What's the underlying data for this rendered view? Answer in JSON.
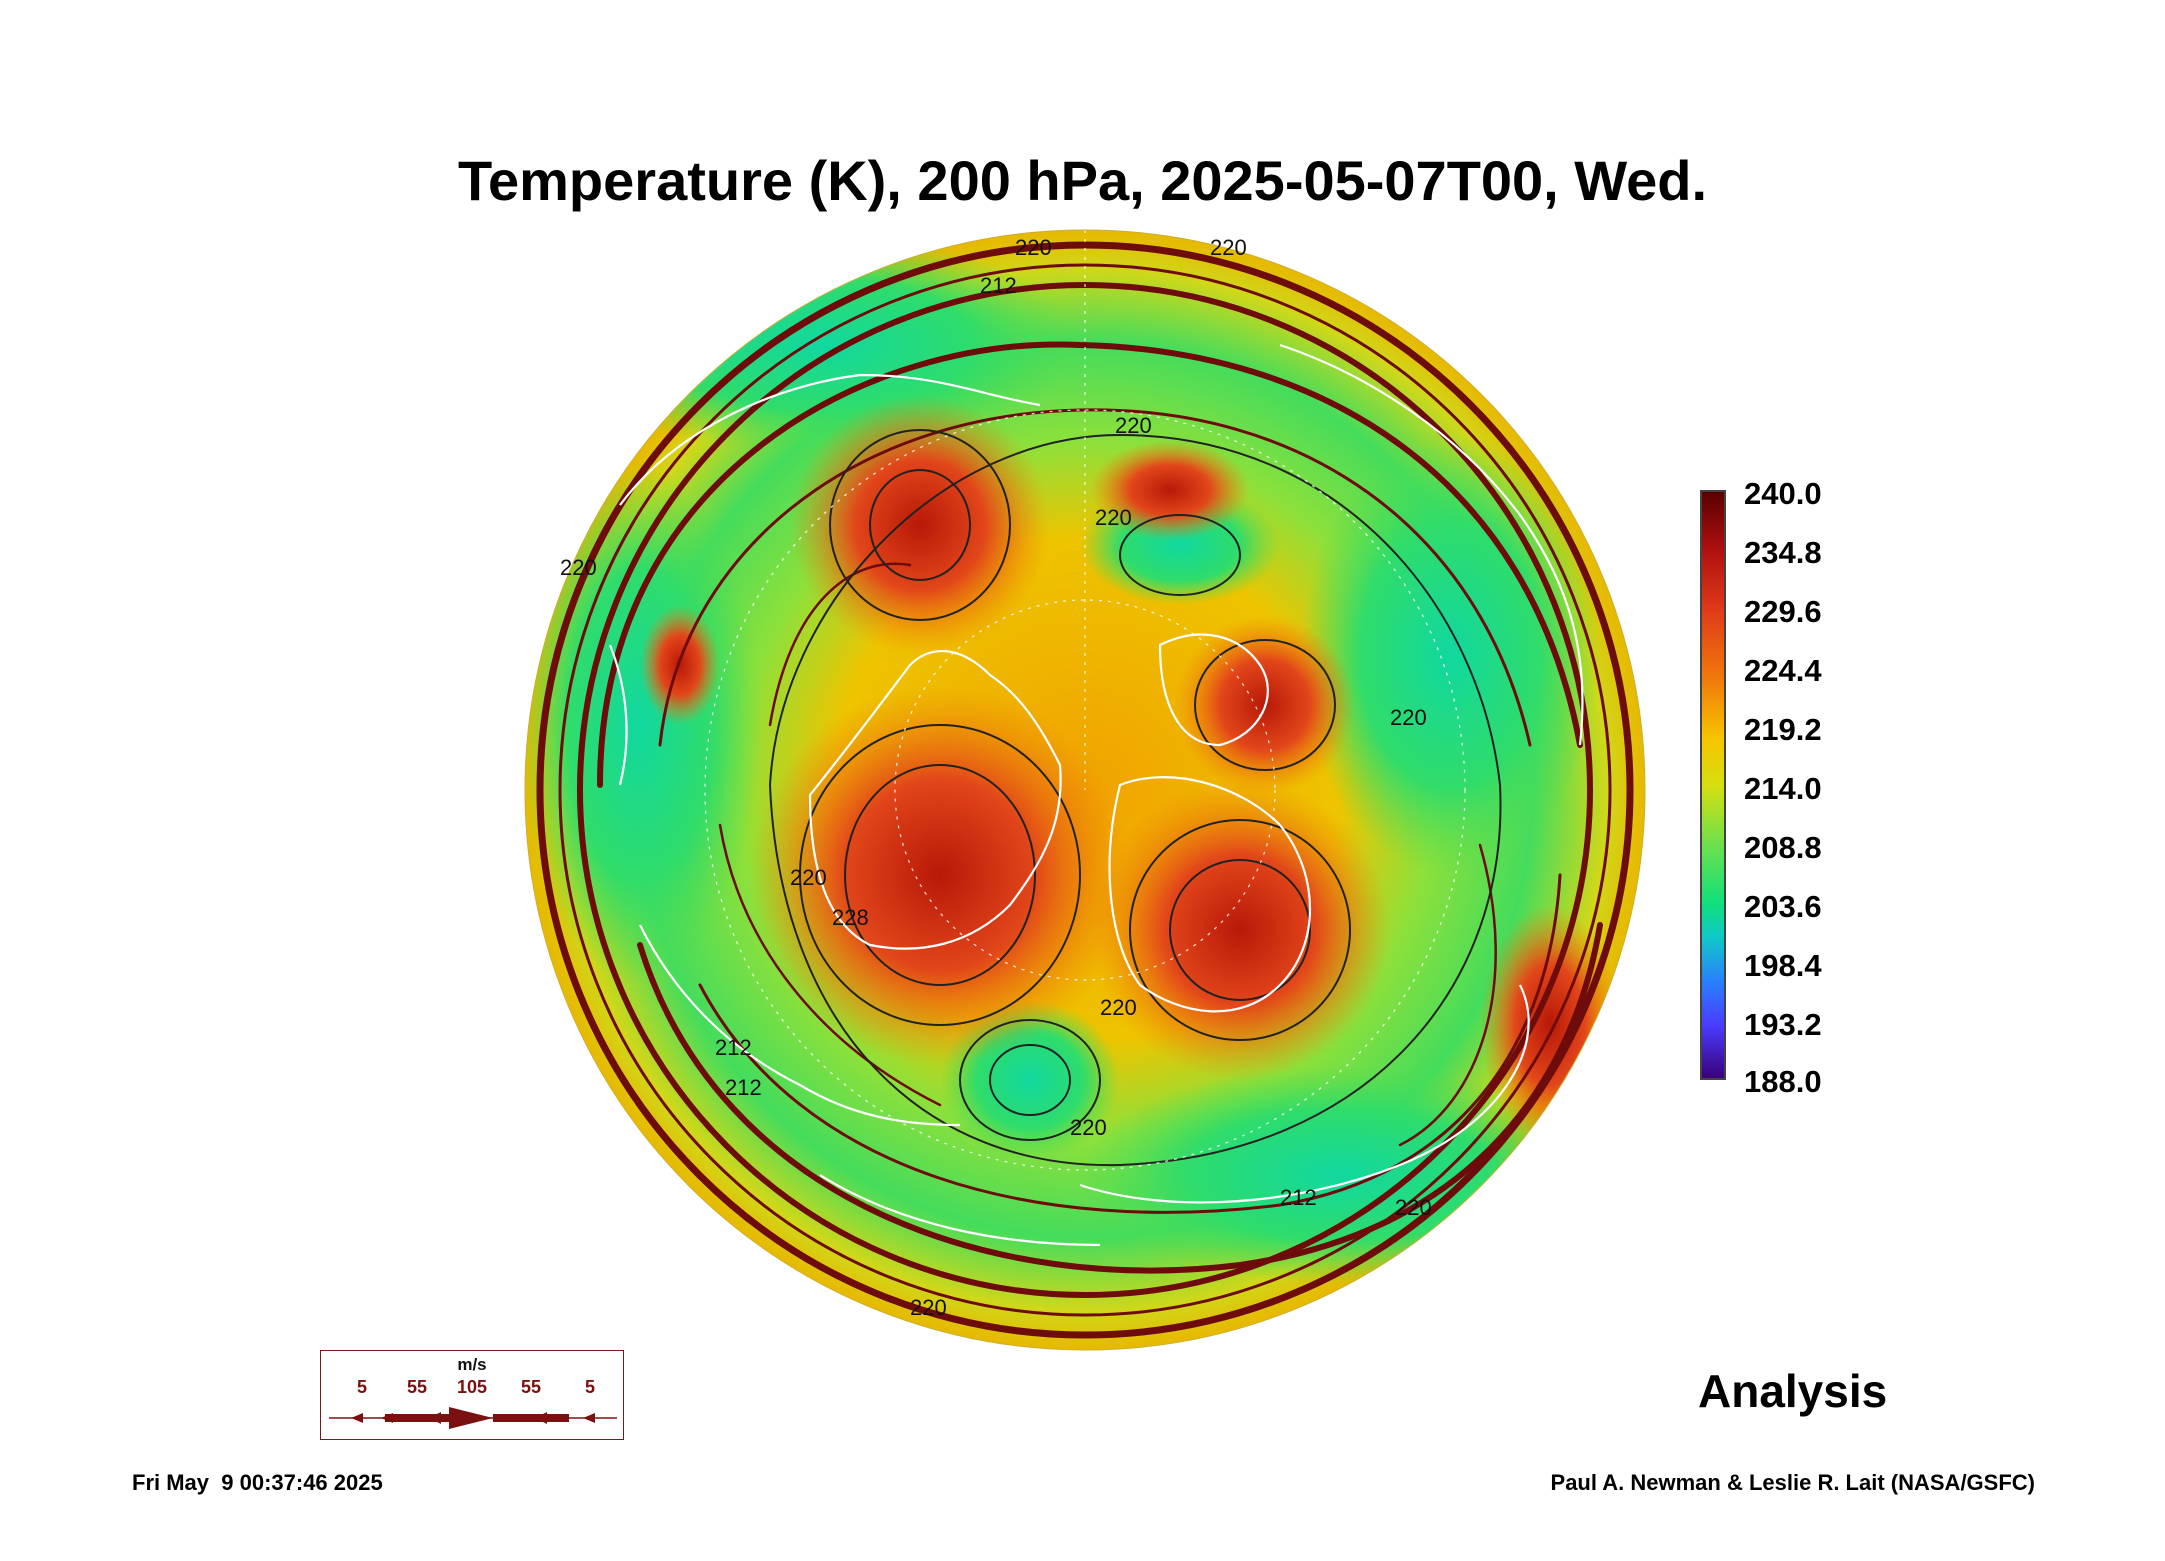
{
  "title": "Temperature (K), 200 hPa, 2025-05-07T00, Wed.",
  "colorbar": {
    "labels": [
      "240.0",
      "234.8",
      "229.6",
      "224.4",
      "219.2",
      "214.0",
      "208.8",
      "203.6",
      "198.4",
      "193.2",
      "188.0"
    ],
    "min": 188.0,
    "max": 240.0
  },
  "contour_labels": [
    "220",
    "212",
    "220",
    "220",
    "212",
    "220",
    "228",
    "220",
    "220",
    "220",
    "212",
    "212",
    "220",
    "220",
    "220",
    "220"
  ],
  "wind_legend": {
    "unit": "m/s",
    "values": [
      "5",
      "55",
      "105",
      "55",
      "5"
    ]
  },
  "mode_label": "Analysis",
  "timestamp": "Fri May  9 00:37:46 2025",
  "credit": "Paul A. Newman & Leslie R. Lait (NASA/GSFC)",
  "colors": {
    "warm_core": "#d8321a",
    "mid": "#f2b800",
    "cold": "#2ad86a",
    "streamline": "#6e0c0c",
    "coastline": "#ffffff"
  }
}
